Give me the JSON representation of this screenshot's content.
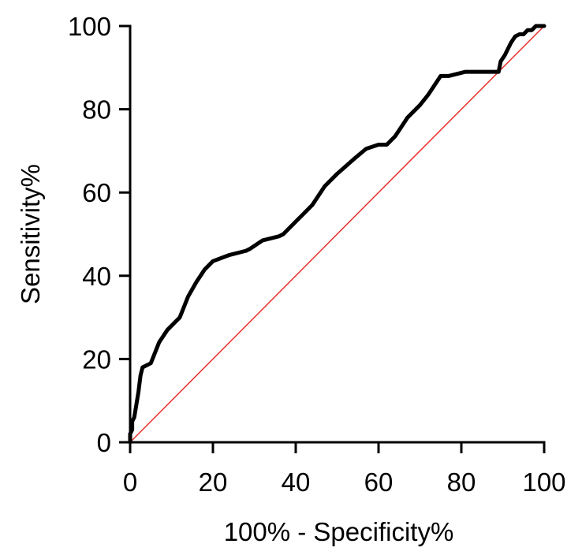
{
  "chart_data": {
    "type": "line",
    "xlabel": "100% - Specificity%",
    "ylabel": "Sensitivity%",
    "xlim": [
      0,
      100
    ],
    "ylim": [
      0,
      100
    ],
    "xticks": [
      "0",
      "20",
      "40",
      "60",
      "80",
      "100"
    ],
    "yticks": [
      "0",
      "20",
      "40",
      "60",
      "80",
      "100"
    ],
    "grid": false,
    "series": [
      {
        "color": "#000000",
        "x": [
          0,
          0,
          0.5,
          0.5,
          1,
          1.5,
          2,
          2.5,
          3,
          5,
          7,
          9,
          11,
          12,
          14,
          16,
          18,
          20,
          24,
          28,
          29,
          32,
          36,
          37,
          40,
          44,
          47,
          50,
          54,
          57,
          60,
          62,
          64,
          67,
          70,
          72,
          75,
          77,
          81,
          89,
          89.5,
          90.5,
          91,
          92,
          93,
          94,
          95,
          96,
          97,
          97.5,
          98,
          99,
          100
        ],
        "y": [
          0,
          2,
          3,
          5,
          6,
          9,
          12,
          16,
          18,
          19,
          24,
          27,
          29,
          30,
          35,
          38.5,
          41.5,
          43.5,
          45,
          46,
          46.5,
          48.5,
          49.5,
          50,
          53,
          57,
          61.5,
          64.5,
          68,
          70.5,
          71.5,
          71.5,
          73.5,
          78,
          81,
          83.5,
          88,
          88,
          89,
          89,
          91.5,
          93,
          94,
          96,
          97.5,
          98,
          98,
          99,
          99,
          99.5,
          100,
          100,
          100
        ]
      },
      {
        "color": "#e8302a",
        "x": [
          0,
          100
        ],
        "y": [
          0,
          100
        ]
      }
    ]
  }
}
